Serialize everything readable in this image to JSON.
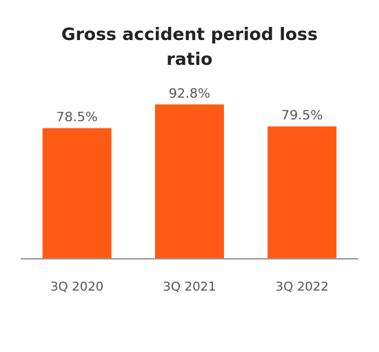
{
  "chart_data": {
    "type": "bar",
    "title_lines": [
      "Gross accident period loss",
      "ratio"
    ],
    "categories": [
      "3Q 2020",
      "3Q 2021",
      "3Q 2022"
    ],
    "values": [
      78.5,
      92.8,
      79.5
    ],
    "value_labels": [
      "78.5%",
      "92.8%",
      "79.5%"
    ],
    "xlabel": "",
    "ylabel": "",
    "ylim": [
      0,
      100
    ],
    "grid": false,
    "legend": "none",
    "bar_color": "#FF5A14",
    "axis_color": "#999999"
  }
}
